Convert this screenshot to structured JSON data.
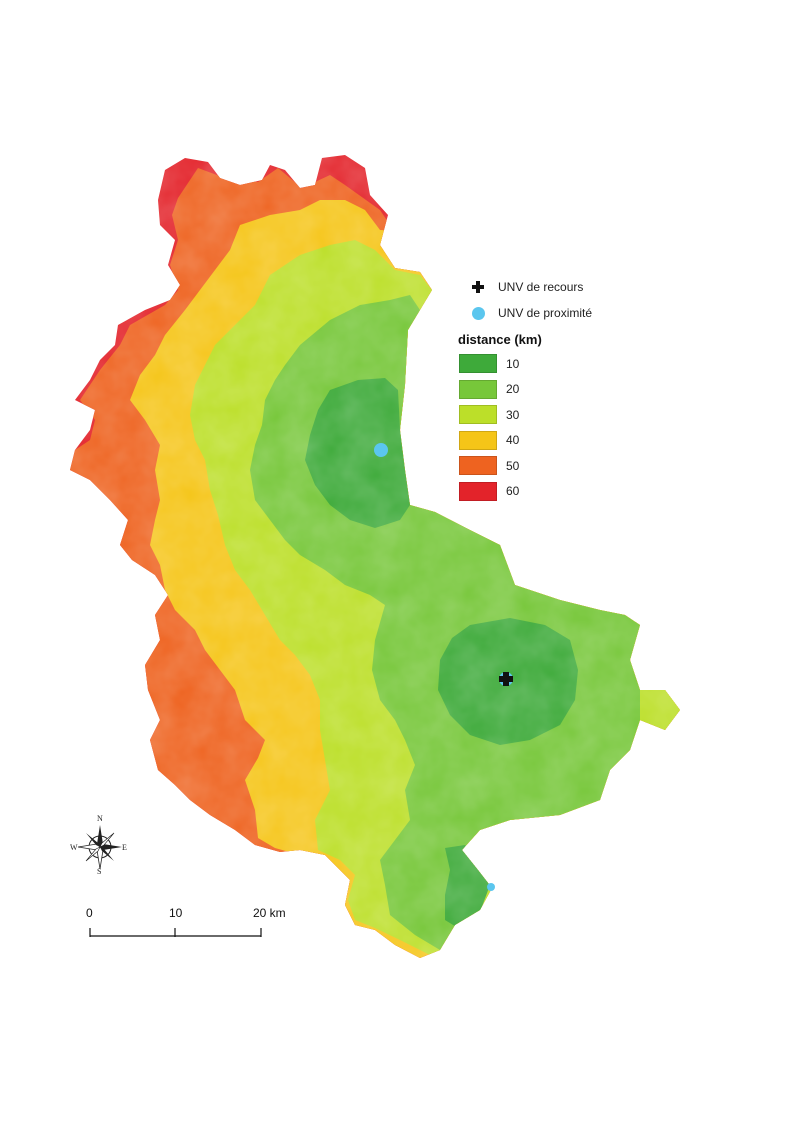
{
  "legend": {
    "recours_label": "UNV de recours",
    "proximite_label": "UNV de proximité",
    "title": "distance (km)",
    "classes": [
      {
        "label": "10",
        "color": "#3eaa3a"
      },
      {
        "label": "20",
        "color": "#77c73a"
      },
      {
        "label": "30",
        "color": "#bcdf29"
      },
      {
        "label": "40",
        "color": "#f5c518"
      },
      {
        "label": "50",
        "color": "#ee6320"
      },
      {
        "label": "60",
        "color": "#e3232a"
      }
    ]
  },
  "compass": {
    "n": "N",
    "s": "S",
    "e": "E",
    "w": "W"
  },
  "scale": {
    "label_0": "0",
    "label_10": "10",
    "label_20": "20 km"
  },
  "markers": {
    "recours_icon": "plus-cross",
    "proximite_icon": "blue-dot",
    "proximite_color": "#5bc6ee"
  }
}
